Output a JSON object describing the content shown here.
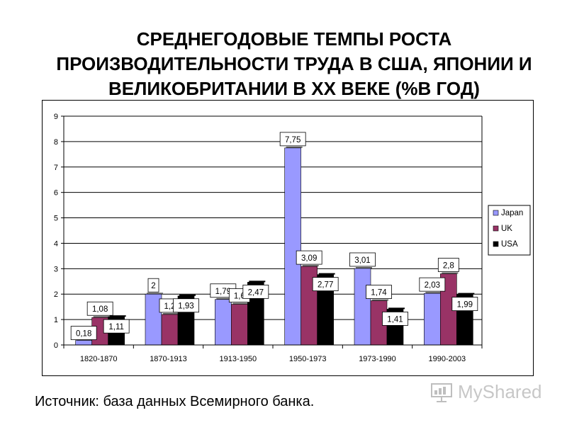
{
  "title_lines": [
    "СРЕДНЕГОДОВЫЕ ТЕМПЫ РОСТА",
    "ПРОИЗВОДИТЕЛЬНОСТИ ТРУДА В США, ЯПОНИИ И",
    "ВЕЛИКОБРИТАНИИ В XX ВЕКЕ (%В ГОД)"
  ],
  "source_text": "Источник: база данных Всемирного банка.",
  "watermark": {
    "text": "MyShared",
    "icon": "presentation-board-icon"
  },
  "chart_data": {
    "type": "bar",
    "categories": [
      "1820-1870",
      "1870-1913",
      "1913-1950",
      "1950-1973",
      "1973-1990",
      "1990-2003"
    ],
    "series": [
      {
        "name": "Japan",
        "color": "#9999ff",
        "values": [
          0.18,
          2,
          1.79,
          7.75,
          3.01,
          2.03
        ],
        "labels": [
          "0,18",
          "2",
          "1,79",
          "7,75",
          "3,01",
          "2,03"
        ]
      },
      {
        "name": "UK",
        "color": "#993366",
        "values": [
          1.08,
          1.2,
          1.6,
          3.09,
          1.74,
          2.8
        ],
        "labels": [
          "1,08",
          "1,2",
          "1,6",
          "3,09",
          "1,74",
          "2,8"
        ]
      },
      {
        "name": "USA",
        "color": "#000000",
        "values": [
          1.11,
          1.93,
          2.47,
          2.77,
          1.41,
          1.99
        ],
        "labels": [
          "1,11",
          "1,93",
          "2,47",
          "2,77",
          "1,41",
          "1,99"
        ]
      }
    ],
    "ylim": [
      0,
      9
    ],
    "yticks": [
      "0",
      "1",
      "2",
      "3",
      "4",
      "5",
      "6",
      "7",
      "8",
      "9"
    ],
    "grid": true,
    "legend_position": "right",
    "xlabel": "",
    "ylabel": ""
  }
}
